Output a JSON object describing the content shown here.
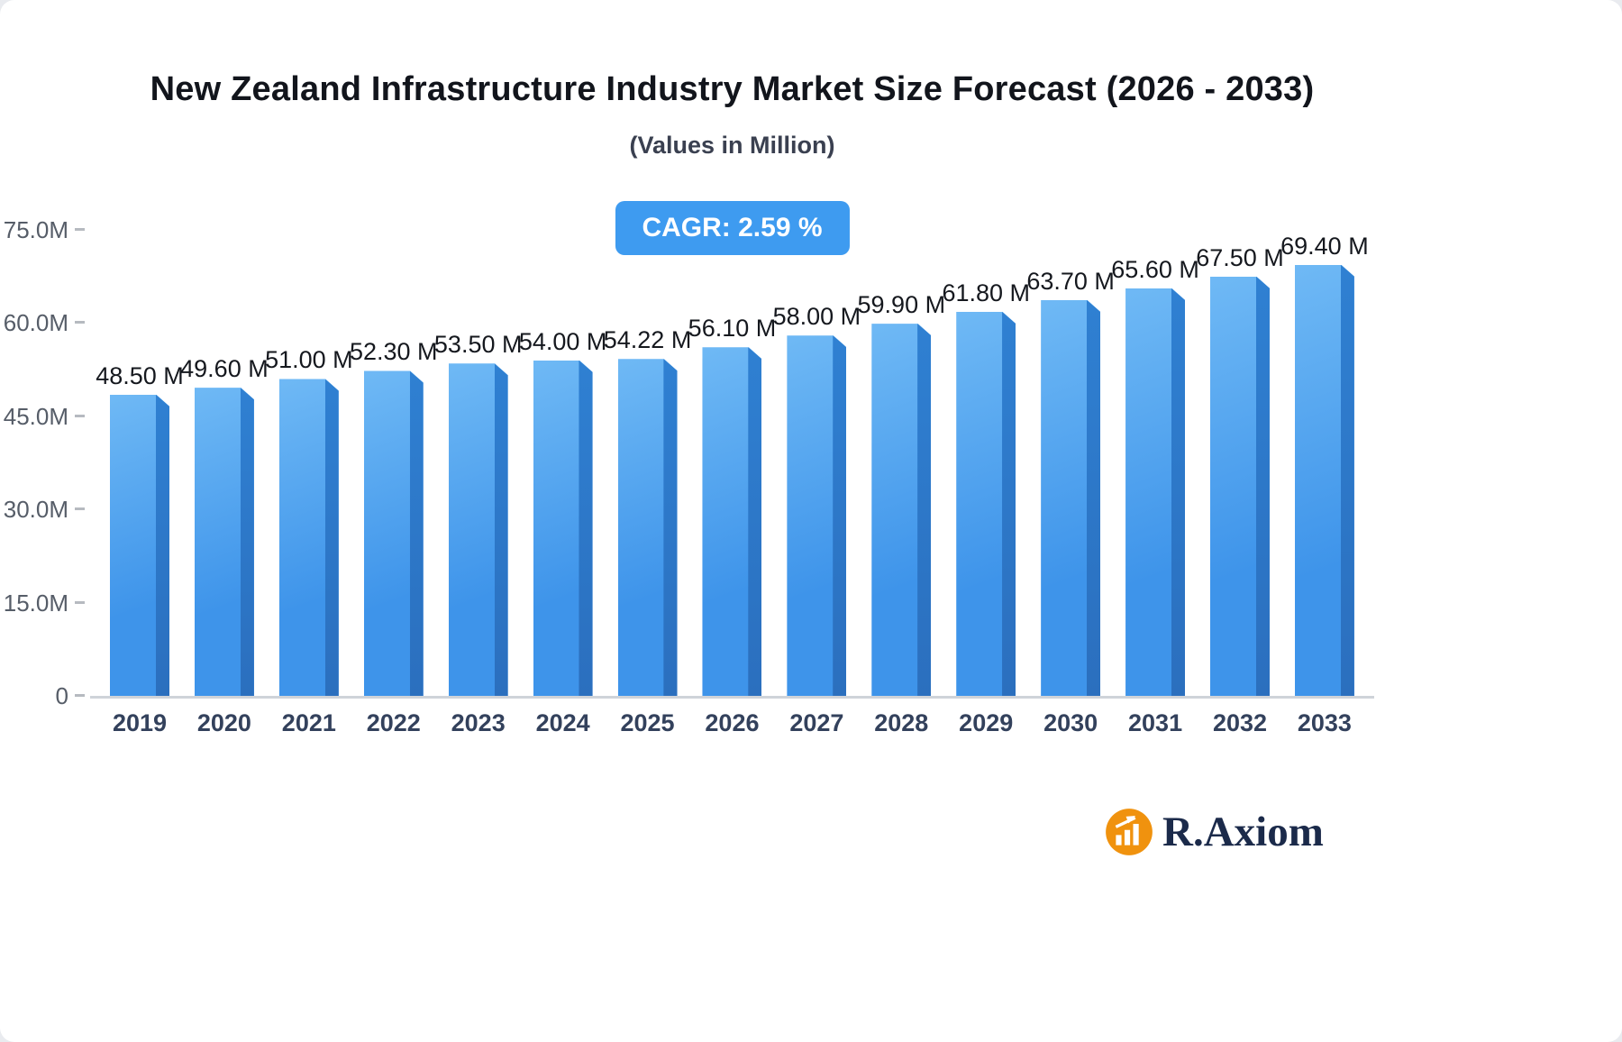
{
  "title": "New Zealand Infrastructure Industry Market Size Forecast (2026 - 2033)",
  "subtitle": "(Values in Million)",
  "badge": {
    "label": "CAGR: 2.59 %"
  },
  "logo": {
    "text": "R.Axiom",
    "icon": "bar-chart-rising-arrow-in-orange-circle"
  },
  "colors": {
    "accent_blue": "#3E9BF0",
    "bar_light": "#6FB9F5",
    "bar_main": "#3E94EA",
    "bar_side_top": "#2F80D2",
    "bar_side_bottom": "#2B6FBE",
    "axis_line": "#CFD3D9",
    "text_year": "#33415C",
    "logo_orange": "#F0920E",
    "logo_navy": "#1B2A4A"
  },
  "chart_data": {
    "type": "bar",
    "title": "New Zealand Infrastructure Industry Market Size Forecast (2026 - 2033)",
    "subtitle": "(Values in Million)",
    "xlabel": "",
    "ylabel": "",
    "ylim": [
      0,
      75
    ],
    "grid": false,
    "legend": "none",
    "categories": [
      "2019",
      "2020",
      "2021",
      "2022",
      "2023",
      "2024",
      "2025",
      "2026",
      "2027",
      "2028",
      "2029",
      "2030",
      "2031",
      "2032",
      "2033"
    ],
    "values": [
      48.5,
      49.6,
      51.0,
      52.3,
      53.5,
      54.0,
      54.22,
      56.1,
      58.0,
      59.9,
      61.8,
      63.7,
      65.6,
      67.5,
      69.4
    ],
    "value_labels": [
      "48.50 M",
      "49.60 M",
      "51.00 M",
      "52.30 M",
      "53.50 M",
      "54.00 M",
      "54.22 M",
      "56.10 M",
      "58.00 M",
      "59.90 M",
      "61.80 M",
      "63.70 M",
      "65.60 M",
      "67.50 M",
      "69.40 M"
    ],
    "y_ticks": [
      {
        "label": "75.0M",
        "value": 75
      },
      {
        "label": "60.0M",
        "value": 60
      },
      {
        "label": "45.0M",
        "value": 45
      },
      {
        "label": "30.0M",
        "value": 30
      },
      {
        "label": "15.0M",
        "value": 15
      },
      {
        "label": "0",
        "value": 0
      }
    ],
    "annotation": "CAGR: 2.59 %"
  }
}
